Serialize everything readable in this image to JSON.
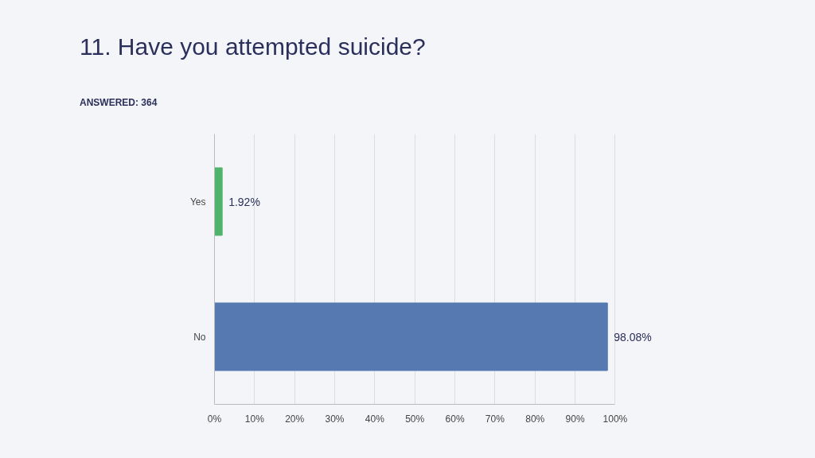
{
  "chart_data": {
    "type": "bar",
    "orientation": "horizontal",
    "title": "11. Have you attempted suicide?",
    "subtitle": "ANSWERED: 364",
    "categories": [
      "Yes",
      "No"
    ],
    "values": [
      1.92,
      98.08
    ],
    "colors": [
      "#4fb36c",
      "#5579b0"
    ],
    "value_labels": [
      "1.92%",
      "98.08%"
    ],
    "xlim": [
      0,
      100
    ],
    "xticks": [
      {
        "value": 0,
        "label": "0%"
      },
      {
        "value": 10,
        "label": "10%"
      },
      {
        "value": 20,
        "label": "20%"
      },
      {
        "value": 30,
        "label": "30%"
      },
      {
        "value": 40,
        "label": "40%"
      },
      {
        "value": 50,
        "label": "50%"
      },
      {
        "value": 60,
        "label": "60%"
      },
      {
        "value": 70,
        "label": "70%"
      },
      {
        "value": 80,
        "label": "80%"
      },
      {
        "value": 90,
        "label": "90%"
      },
      {
        "value": 100,
        "label": "100%"
      }
    ],
    "grid": "x"
  }
}
